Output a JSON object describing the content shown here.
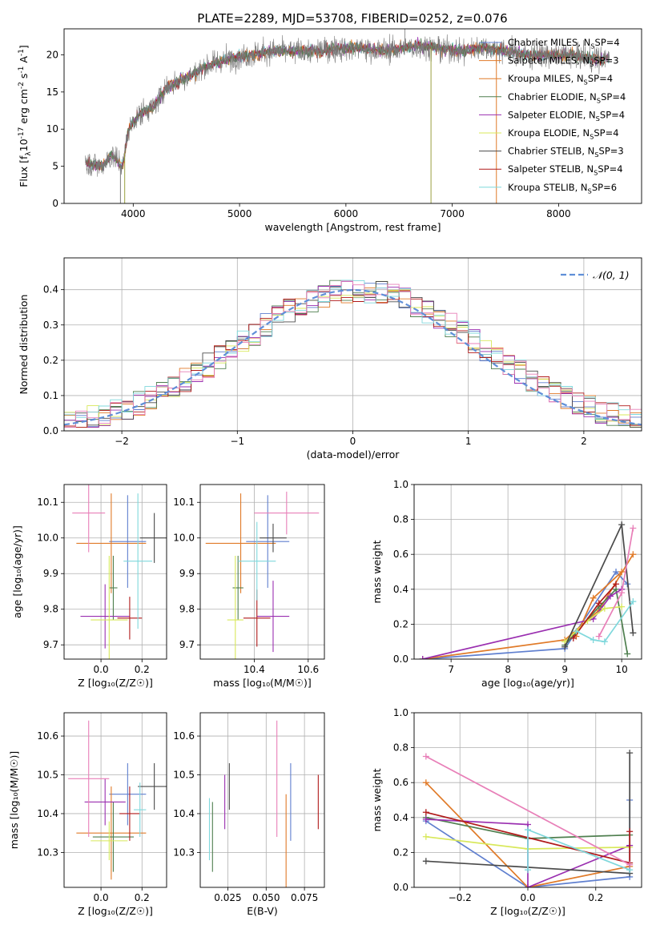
{
  "figure_title": "PLATE=2289, MJD=53708, FIBERID=0252, z=0.076",
  "colors": {
    "Chabrier MILES": "#5f7fcf",
    "Salpeter MILES": "#e07a28",
    "Kroupa MILES": "#e07a28",
    "Chabrier ELODIE": "#4f7f4f",
    "Salpeter ELODIE": "#9a2fb0",
    "Kroupa ELODIE": "#d8e85a",
    "Chabrier STELIB": "#4a4a4a",
    "Salpeter STELIB": "#b01a1a",
    "Kroupa STELIB": "#7fd8dc",
    "pink": "#e87fb8",
    "gaussian": "#5f8fd8"
  },
  "chart_data": [
    {
      "id": "spectrum",
      "type": "line",
      "xlabel": "wavelength [Angstrom, rest frame]",
      "ylabel": "Flux [f_λ10^{-17} erg cm^{-2} s^{-1} A^{-1}]",
      "xlim": [
        3350,
        8780
      ],
      "ylim": [
        0,
        23.5
      ],
      "xticks": [
        4000,
        5000,
        6000,
        7000,
        8000
      ],
      "yticks": [
        0,
        5,
        10,
        15,
        20
      ],
      "legend_placement": "right",
      "legend": [
        "Chabrier MILES, N_SSP=4",
        "Salpeter MILES, N_SSP=3",
        "Kroupa MILES, N_SSP=4",
        "Chabrier ELODIE, N_SSP=4",
        "Salpeter ELODIE, N_SSP=4",
        "Kroupa ELODIE, N_SSP=4",
        "Chabrier STELIB, N_SSP=3",
        "Salpeter STELIB, N_SSP=4",
        "Kroupa STELIB, N_SSP=6"
      ],
      "continuum": {
        "x": [
          3550,
          3700,
          3800,
          3900,
          3950,
          4000,
          4100,
          4200,
          4300,
          4500,
          4700,
          4900,
          5100,
          5300,
          5500,
          5700,
          5900,
          6100,
          6300,
          6500,
          6700,
          6900,
          7100,
          7300,
          7500,
          7700,
          7900,
          8100,
          8300,
          8480
        ],
        "y": [
          5.5,
          5.0,
          6.5,
          5.0,
          9.5,
          11.0,
          12.5,
          13.0,
          15.5,
          17.0,
          18.5,
          19.5,
          20.0,
          20.5,
          20.5,
          20.5,
          20.8,
          21.0,
          20.5,
          20.8,
          21.2,
          20.8,
          20.5,
          21.0,
          20.5,
          20.0,
          20.0,
          20.0,
          19.5,
          19.5
        ]
      },
      "spikes_down": [
        {
          "x": 3880,
          "y": 0
        },
        {
          "x": 3920,
          "y": 0
        },
        {
          "x": 6800,
          "y": 0
        },
        {
          "x": 7415,
          "y": 0
        }
      ]
    },
    {
      "id": "residuals",
      "type": "line",
      "xlabel": "(data-model)/error",
      "ylabel": "Normed distribution",
      "xlim": [
        -2.5,
        2.5
      ],
      "ylim": [
        0,
        0.49
      ],
      "xticks": [
        -2,
        -1,
        0,
        1,
        2
      ],
      "xtick_labels": [
        "−2",
        "−1",
        "0",
        "1",
        "2"
      ],
      "yticks": [
        0,
        0.1,
        0.2,
        0.3,
        0.4
      ],
      "ytick_labels": [
        "0.0",
        "0.1",
        "0.2",
        "0.3",
        "0.4"
      ],
      "grid": true,
      "legend_placement": "top-right",
      "legend": [
        "𝒩(0, 1)"
      ],
      "bin_width": 0.1
    },
    {
      "id": "age_vs_Z",
      "type": "scatter",
      "xlabel": "Z [log₁₀(Z/Z☉)]",
      "ylabel": "age  [log₁₀(age/yr)]",
      "xlim": [
        -0.18,
        0.32
      ],
      "ylim": [
        9.66,
        10.15
      ],
      "xticks": [
        0.0,
        0.2
      ],
      "xtick_labels": [
        "0.0",
        "0.2"
      ],
      "yticks": [
        9.7,
        9.8,
        9.9,
        10.0,
        10.1
      ],
      "ytick_labels": [
        "9.7",
        "9.8",
        "9.9",
        "10.0",
        "10.1"
      ],
      "grid": true,
      "points": [
        {
          "model": "Chabrier MILES",
          "x": 0.13,
          "y": 9.99,
          "xerr": 0.09,
          "yerr": 0.13
        },
        {
          "model": "Salpeter MILES",
          "x": 0.05,
          "y": 9.985,
          "xerr": 0.17,
          "yerr": 0.14
        },
        {
          "model": "Chabrier ELODIE",
          "x": 0.06,
          "y": 9.86,
          "xerr": 0.02,
          "yerr": 0.09
        },
        {
          "model": "Salpeter ELODIE",
          "x": 0.02,
          "y": 9.78,
          "xerr": 0.12,
          "yerr": 0.09
        },
        {
          "model": "Kroupa ELODIE",
          "x": 0.04,
          "y": 9.77,
          "xerr": 0.09,
          "yerr": 0.18
        },
        {
          "model": "Chabrier STELIB",
          "x": 0.26,
          "y": 10.0,
          "xerr": 0.07,
          "yerr": 0.07
        },
        {
          "model": "Salpeter STELIB",
          "x": 0.14,
          "y": 9.775,
          "xerr": 0.06,
          "yerr": 0.06
        },
        {
          "model": "Kroupa STELIB",
          "x": 0.18,
          "y": 9.935,
          "xerr": 0.07,
          "yerr": 0.19
        },
        {
          "model": "pink",
          "x": -0.06,
          "y": 10.07,
          "xerr": 0.08,
          "yerr": 0.11
        }
      ]
    },
    {
      "id": "age_vs_mass",
      "type": "scatter",
      "xlabel": "mass [log₁₀(M/M☉)]",
      "ylabel": "",
      "xlim": [
        10.2,
        10.66
      ],
      "ylim": [
        9.66,
        10.15
      ],
      "xticks": [
        10.4,
        10.6
      ],
      "xtick_labels": [
        "10.4",
        "10.6"
      ],
      "yticks": [
        9.7,
        9.8,
        9.9,
        10.0,
        10.1
      ],
      "ytick_labels": [
        "9.7",
        "9.8",
        "9.9",
        "10.0",
        "10.1"
      ],
      "grid": true,
      "points": [
        {
          "model": "Chabrier MILES",
          "x": 10.45,
          "y": 9.99,
          "xerr": 0.08,
          "yerr": 0.13
        },
        {
          "model": "Salpeter MILES",
          "x": 10.35,
          "y": 9.985,
          "xerr": 0.13,
          "yerr": 0.14
        },
        {
          "model": "Chabrier ELODIE",
          "x": 10.34,
          "y": 9.86,
          "xerr": 0.02,
          "yerr": 0.09
        },
        {
          "model": "Salpeter ELODIE",
          "x": 10.47,
          "y": 9.78,
          "xerr": 0.06,
          "yerr": 0.1
        },
        {
          "model": "Kroupa ELODIE",
          "x": 10.33,
          "y": 9.77,
          "xerr": 0.03,
          "yerr": 0.18
        },
        {
          "model": "Chabrier STELIB",
          "x": 10.47,
          "y": 10.0,
          "xerr": 0.05,
          "yerr": 0.04
        },
        {
          "model": "Salpeter STELIB",
          "x": 10.41,
          "y": 9.775,
          "xerr": 0.05,
          "yerr": 0.08
        },
        {
          "model": "Kroupa STELIB",
          "x": 10.41,
          "y": 9.935,
          "xerr": 0.07,
          "yerr": 0.11
        },
        {
          "model": "pink",
          "x": 10.52,
          "y": 10.07,
          "xerr": 0.12,
          "yerr": 0.06
        }
      ]
    },
    {
      "id": "massweight_vs_age",
      "type": "line",
      "xlabel": "age  [log₁₀(age/yr)]",
      "ylabel": "mass weight",
      "xlim": [
        6.35,
        10.35
      ],
      "ylim": [
        0,
        1.0
      ],
      "xticks": [
        7,
        8,
        9,
        10
      ],
      "xtick_labels": [
        "7",
        "8",
        "9",
        "10"
      ],
      "yticks": [
        0,
        0.2,
        0.4,
        0.6,
        0.8,
        1.0
      ],
      "ytick_labels": [
        "0.0",
        "0.2",
        "0.4",
        "0.6",
        "0.8",
        "1.0"
      ],
      "grid": true,
      "series": [
        {
          "model": "Chabrier MILES",
          "x": [
            6.5,
            9.0,
            9.9,
            10.1
          ],
          "y": [
            0.0,
            0.06,
            0.5,
            0.43
          ]
        },
        {
          "model": "Salpeter MILES",
          "x": [
            6.5,
            9.0,
            9.6,
            10.2
          ],
          "y": [
            0.0,
            0.11,
            0.28,
            0.6
          ]
        },
        {
          "model": "Kroupa MILES",
          "x": [
            9.2,
            9.5,
            10.0
          ],
          "y": [
            0.13,
            0.35,
            0.5
          ]
        },
        {
          "model": "Chabrier ELODIE",
          "x": [
            9.0,
            9.6,
            9.9,
            10.1
          ],
          "y": [
            0.08,
            0.3,
            0.4,
            0.03
          ]
        },
        {
          "model": "Salpeter ELODIE",
          "x": [
            6.5,
            9.5,
            9.8,
            10.0
          ],
          "y": [
            0.0,
            0.23,
            0.36,
            0.4
          ]
        },
        {
          "model": "Kroupa ELODIE",
          "x": [
            9.0,
            9.4,
            9.7,
            10.0
          ],
          "y": [
            0.1,
            0.22,
            0.29,
            0.3
          ]
        },
        {
          "model": "Chabrier STELIB",
          "x": [
            9.0,
            10.0,
            10.2
          ],
          "y": [
            0.07,
            0.77,
            0.15
          ]
        },
        {
          "model": "Salpeter STELIB",
          "x": [
            9.15,
            9.6,
            9.9
          ],
          "y": [
            0.12,
            0.32,
            0.43
          ]
        },
        {
          "model": "Kroupa STELIB",
          "x": [
            9.2,
            9.5,
            9.7,
            10.2
          ],
          "y": [
            0.16,
            0.11,
            0.1,
            0.33
          ]
        },
        {
          "model": "pink",
          "x": [
            9.6,
            10.0,
            10.2
          ],
          "y": [
            0.13,
            0.38,
            0.75
          ]
        }
      ]
    },
    {
      "id": "mass_vs_Z",
      "type": "scatter",
      "xlabel": "Z [log₁₀(Z/Z☉)]",
      "ylabel": "mass [log₁₀(M/M☉)]",
      "xlim": [
        -0.18,
        0.32
      ],
      "ylim": [
        10.21,
        10.66
      ],
      "xticks": [
        0.0,
        0.2
      ],
      "xtick_labels": [
        "0.0",
        "0.2"
      ],
      "yticks": [
        10.3,
        10.4,
        10.5,
        10.6
      ],
      "ytick_labels": [
        "10.3",
        "10.4",
        "10.5",
        "10.6"
      ],
      "grid": true,
      "points": [
        {
          "model": "Chabrier MILES",
          "x": 0.13,
          "y": 10.45,
          "xerr": 0.09,
          "yerr": 0.08
        },
        {
          "model": "Salpeter MILES",
          "x": 0.05,
          "y": 10.35,
          "xerr": 0.17,
          "yerr": 0.12
        },
        {
          "model": "Chabrier ELODIE",
          "x": 0.06,
          "y": 10.34,
          "xerr": 0.1,
          "yerr": 0.09
        },
        {
          "model": "Salpeter ELODIE",
          "x": 0.02,
          "y": 10.43,
          "xerr": 0.1,
          "yerr": 0.06
        },
        {
          "model": "Kroupa ELODIE",
          "x": 0.04,
          "y": 10.33,
          "xerr": 0.09,
          "yerr": 0.05
        },
        {
          "model": "Chabrier STELIB",
          "x": 0.26,
          "y": 10.47,
          "xerr": 0.08,
          "yerr": 0.06
        },
        {
          "model": "Salpeter STELIB",
          "x": 0.14,
          "y": 10.4,
          "xerr": 0.05,
          "yerr": 0.07
        },
        {
          "model": "Kroupa STELIB",
          "x": 0.19,
          "y": 10.41,
          "xerr": 0.03,
          "yerr": 0.07
        },
        {
          "model": "pink",
          "x": -0.06,
          "y": 10.49,
          "xerr": 0.1,
          "yerr": 0.15
        }
      ]
    },
    {
      "id": "mass_vs_ebv",
      "type": "scatter",
      "xlabel": "E(B-V)",
      "ylabel": "",
      "xlim": [
        0.007,
        0.088
      ],
      "ylim": [
        10.21,
        10.66
      ],
      "xticks": [
        0.025,
        0.05,
        0.075
      ],
      "xtick_labels": [
        "0.025",
        "0.050",
        "0.075"
      ],
      "yticks": [
        10.3,
        10.4,
        10.5,
        10.6
      ],
      "ytick_labels": [
        "10.3",
        "10.4",
        "10.5",
        "10.6"
      ],
      "grid": true,
      "points": [
        {
          "model": "Chabrier ELODIE",
          "x": 0.015,
          "y": 10.34,
          "yerr": 0.09
        },
        {
          "model": "Kroupa STELIB",
          "x": 0.013,
          "y": 10.36,
          "yerr": 0.08
        },
        {
          "model": "Salpeter ELODIE",
          "x": 0.023,
          "y": 10.43,
          "yerr": 0.07
        },
        {
          "model": "Chabrier STELIB",
          "x": 0.026,
          "y": 10.47,
          "yerr": 0.06
        },
        {
          "model": "pink",
          "x": 0.057,
          "y": 10.49,
          "yerr": 0.15
        },
        {
          "model": "Salpeter MILES",
          "x": 0.063,
          "y": 10.33,
          "yerr": 0.12
        },
        {
          "model": "Chabrier MILES",
          "x": 0.066,
          "y": 10.43,
          "yerr": 0.1
        },
        {
          "model": "Salpeter STELIB",
          "x": 0.084,
          "y": 10.43,
          "yerr": 0.07
        }
      ]
    },
    {
      "id": "massweight_vs_Z",
      "type": "line",
      "xlabel": "Z [log₁₀(Z/Z☉)]",
      "ylabel": "mass weight",
      "xlim": [
        -0.335,
        0.335
      ],
      "ylim": [
        0,
        1.0
      ],
      "xticks": [
        -0.2,
        0.0,
        0.2
      ],
      "xtick_labels": [
        "−0.2",
        "0.0",
        "0.2"
      ],
      "yticks": [
        0,
        0.2,
        0.4,
        0.6,
        0.8,
        1.0
      ],
      "ytick_labels": [
        "0.0",
        "0.2",
        "0.4",
        "0.6",
        "0.8",
        "1.0"
      ],
      "grid": true,
      "series": [
        {
          "model": "Chabrier MILES",
          "x": [
            -0.3,
            0.0,
            0.3,
            0.3
          ],
          "y": [
            0.38,
            0.0,
            0.06,
            0.5
          ]
        },
        {
          "model": "Salpeter MILES",
          "x": [
            -0.3,
            0.0,
            0.3
          ],
          "y": [
            0.6,
            0.0,
            0.12
          ]
        },
        {
          "model": "Chabrier ELODIE",
          "x": [
            -0.3,
            0.0,
            0.3
          ],
          "y": [
            0.4,
            0.28,
            0.3
          ]
        },
        {
          "model": "Salpeter ELODIE",
          "x": [
            -0.3,
            0.0,
            0.0,
            0.3
          ],
          "y": [
            0.39,
            0.36,
            0.0,
            0.24
          ]
        },
        {
          "model": "Kroupa ELODIE",
          "x": [
            -0.3,
            0.0,
            0.3
          ],
          "y": [
            0.29,
            0.22,
            0.23
          ]
        },
        {
          "model": "Chabrier STELIB",
          "x": [
            -0.3,
            0.3,
            0.3
          ],
          "y": [
            0.15,
            0.08,
            0.77
          ]
        },
        {
          "model": "Salpeter STELIB",
          "x": [
            -0.3,
            0.3,
            0.3
          ],
          "y": [
            0.43,
            0.14,
            0.32
          ]
        },
        {
          "model": "Kroupa STELIB",
          "x": [
            0.0,
            0.0,
            0.3
          ],
          "y": [
            0.1,
            0.33,
            0.1
          ]
        },
        {
          "model": "pink",
          "x": [
            -0.3,
            0.3
          ],
          "y": [
            0.75,
            0.13
          ]
        }
      ]
    }
  ]
}
